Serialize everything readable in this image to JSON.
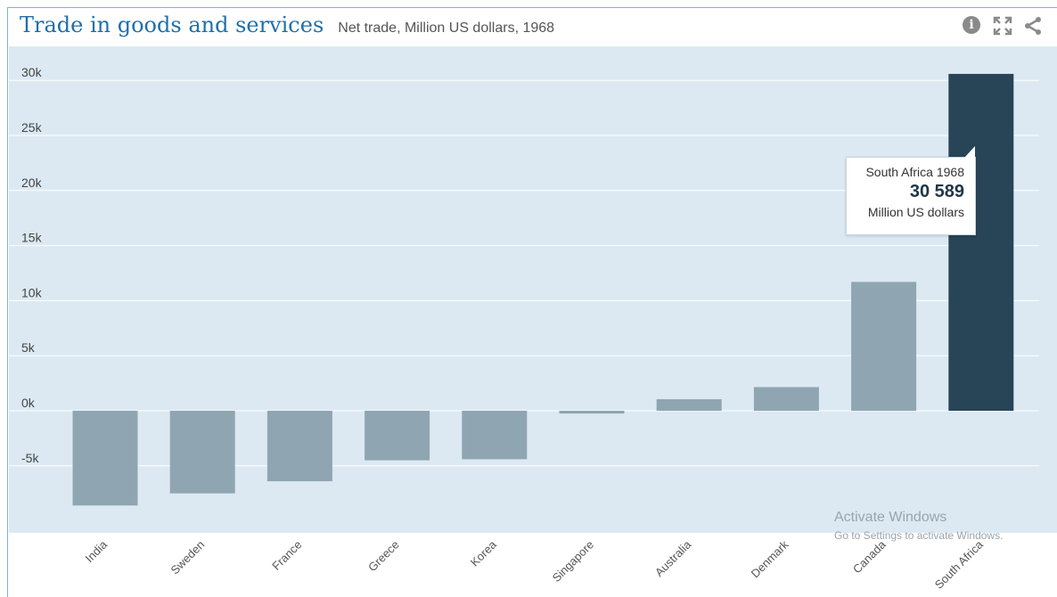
{
  "header": {
    "title": "Trade in goods and services",
    "subtitle": "Net trade, Million US dollars, 1968"
  },
  "toolbar": {
    "info_icon": "info-icon",
    "expand_icon": "expand-icon",
    "share_icon": "share-icon"
  },
  "chart_data": {
    "type": "bar",
    "categories": [
      "India",
      "Sweden",
      "France",
      "Greece",
      "Korea",
      "Singapore",
      "Australia",
      "Denmark",
      "Canada",
      "South Africa"
    ],
    "values": [
      -8600,
      -7500,
      -6400,
      -4500,
      -4400,
      -250,
      1050,
      2150,
      11700,
      30589
    ],
    "highlighted": "South Africa",
    "yticks": [
      "30k",
      "25k",
      "20k",
      "15k",
      "10k",
      "5k",
      "0k",
      "-5k"
    ],
    "ytick_values": [
      30000,
      25000,
      20000,
      15000,
      10000,
      5000,
      0,
      -5000
    ],
    "ylim": [
      -11000,
      31500
    ],
    "grid": true,
    "colors": {
      "bar": "#8fa6b2",
      "highlight": "#284457",
      "plot_background": "#dce9f2",
      "gridline": "#ffffff"
    }
  },
  "tooltip": {
    "title": "South Africa 1968",
    "value": "30 589",
    "unit": "Million US dollars"
  },
  "watermark": {
    "line1": "Activate Windows",
    "line2": "Go to Settings to activate Windows."
  }
}
